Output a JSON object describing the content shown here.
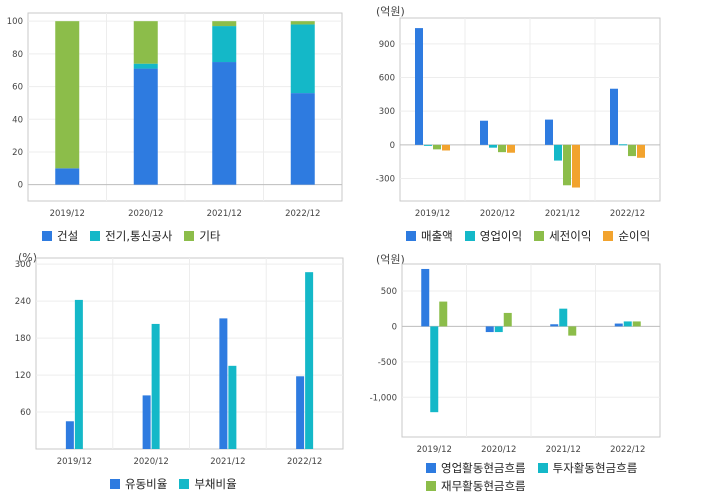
{
  "colors": {
    "blue": "#2e7be0",
    "cyan": "#14b8c8",
    "green": "#8cbd4a",
    "orange": "#f2a32e"
  },
  "chart_data": [
    {
      "type": "bar",
      "stacked": true,
      "unit": "",
      "categories": [
        "2019/12",
        "2020/12",
        "2021/12",
        "2022/12"
      ],
      "series": [
        {
          "name": "건설",
          "color": "#2e7be0",
          "values": [
            10,
            71,
            75,
            56
          ]
        },
        {
          "name": "전기,통신공사",
          "color": "#14b8c8",
          "values": [
            0,
            3,
            22,
            42
          ]
        },
        {
          "name": "기타",
          "color": "#8cbd4a",
          "values": [
            90,
            26,
            3,
            2
          ]
        }
      ],
      "yticks": [
        0,
        20,
        40,
        60,
        80,
        100
      ],
      "ylim": [
        -10,
        105
      ],
      "grid": true,
      "legend": "bottom"
    },
    {
      "type": "bar",
      "unit": "(억원)",
      "categories": [
        "2019/12",
        "2020/12",
        "2021/12",
        "2022/12"
      ],
      "series": [
        {
          "name": "매출액",
          "color": "#2e7be0",
          "values": [
            1040,
            215,
            225,
            500
          ]
        },
        {
          "name": "영업이익",
          "color": "#14b8c8",
          "values": [
            -5,
            -25,
            -140,
            5
          ]
        },
        {
          "name": "세전이익",
          "color": "#8cbd4a",
          "values": [
            -40,
            -65,
            -360,
            -100
          ]
        },
        {
          "name": "순이익",
          "color": "#f2a32e",
          "values": [
            -50,
            -70,
            -380,
            -115
          ]
        }
      ],
      "yticks": [
        -300,
        0,
        300,
        600,
        900
      ],
      "ytick_labels": [
        "-300",
        "0",
        "300",
        "600",
        "900"
      ],
      "ylim": [
        -500,
        1130
      ],
      "grid": true,
      "legend": "bottom"
    },
    {
      "type": "bar",
      "unit": "(%)",
      "categories": [
        "2019/12",
        "2020/12",
        "2021/12",
        "2022/12"
      ],
      "series": [
        {
          "name": "유동비율",
          "color": "#2e7be0",
          "values": [
            45,
            87,
            212,
            118
          ]
        },
        {
          "name": "부채비율",
          "color": "#14b8c8",
          "values": [
            242,
            203,
            135,
            287
          ]
        }
      ],
      "yticks": [
        60,
        120,
        180,
        240,
        300
      ],
      "ylim": [
        0,
        310
      ],
      "grid": true,
      "legend": "bottom"
    },
    {
      "type": "bar",
      "unit": "(억원)",
      "categories": [
        "2019/12",
        "2020/12",
        "2021/12",
        "2022/12"
      ],
      "series": [
        {
          "name": "영업활동현금흐름",
          "color": "#2e7be0",
          "values": [
            810,
            -80,
            30,
            40
          ]
        },
        {
          "name": "투자활동현금흐름",
          "color": "#14b8c8",
          "values": [
            -1210,
            -80,
            250,
            70
          ]
        },
        {
          "name": "재무활동현금흐름",
          "color": "#8cbd4a",
          "values": [
            350,
            190,
            -130,
            70
          ]
        }
      ],
      "yticks": [
        -1000,
        -500,
        0,
        500
      ],
      "ytick_labels": [
        "-1,000",
        "-500",
        "0",
        "500"
      ],
      "ylim": [
        -1560,
        880
      ],
      "grid": true,
      "legend": "bottom"
    }
  ]
}
